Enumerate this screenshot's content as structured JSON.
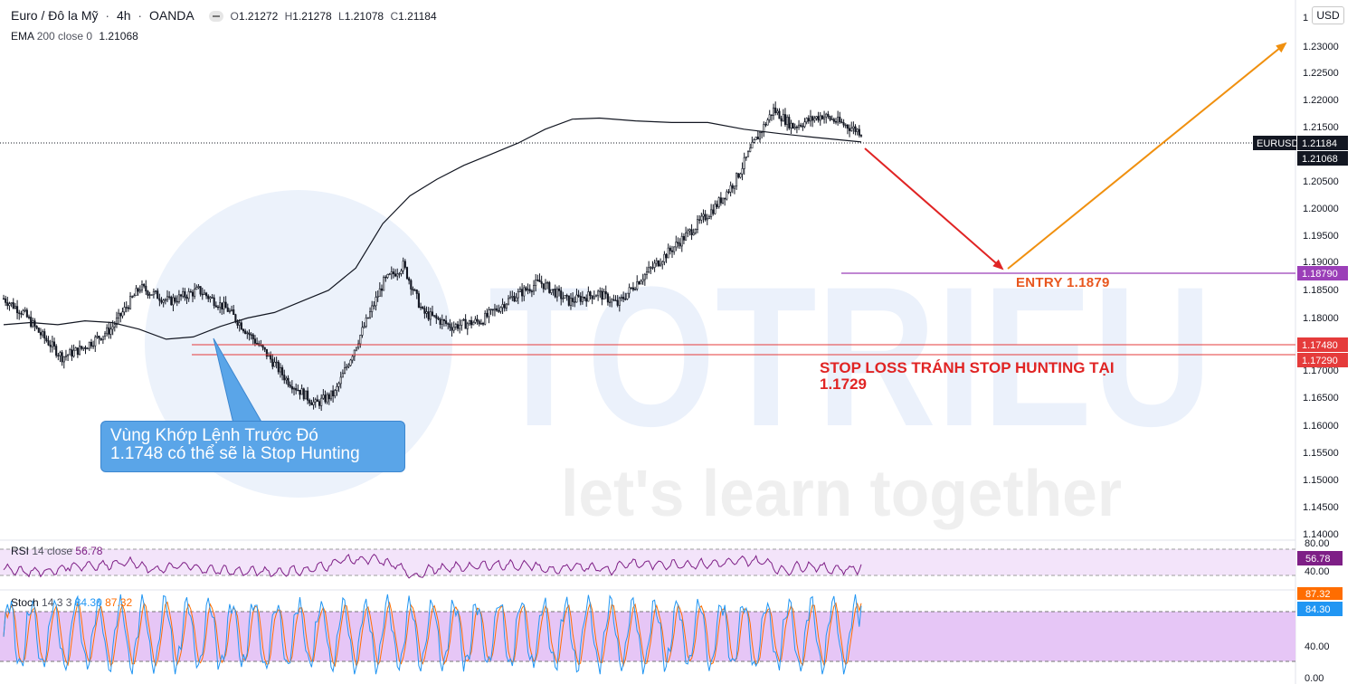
{
  "header": {
    "symbol": "Euro / Đô la Mỹ",
    "interval": "4h",
    "exchange": "OANDA",
    "o_label": "O",
    "o_value": "1.21272",
    "h_label": "H",
    "h_value": "1.21278",
    "l_label": "L",
    "l_value": "1.21078",
    "c_label": "C",
    "c_value": "1.21184"
  },
  "ema": {
    "name": "EMA",
    "params": "200 close 0",
    "value": "1.21068"
  },
  "currency_button": "USD",
  "price_scale": {
    "ticks": [
      "1.23000",
      "1.22500",
      "1.22000",
      "1.21500",
      "1.20500",
      "1.20000",
      "1.19500",
      "1.19000",
      "1.18500",
      "1.18000",
      "1.17000",
      "1.16500",
      "1.16000",
      "1.15500",
      "1.15000",
      "1.14500",
      "1.14000"
    ],
    "top_tick": "1"
  },
  "badges": {
    "symbol": "EURUSD",
    "price": "1.21184",
    "ema": "1.21068",
    "entry": "1.18790",
    "level1": "1.17480",
    "level2": "1.17290"
  },
  "annotations": {
    "callout_line1": "Vùng Khớp Lệnh Trước Đó",
    "callout_line2": "1.1748 có thể sẽ là Stop Hunting",
    "entry_label": "ENTRY 1.1879",
    "stop_line1": "STOP LOSS TRÁNH STOP HUNTING TẠI",
    "stop_line2": "1.1729"
  },
  "watermark": {
    "brand": "TOTRIEU",
    "slogan": "let's learn together"
  },
  "rsi": {
    "name": "RSI",
    "params": "14 close",
    "value": "56.78",
    "scale_top": "80.00",
    "scale_bottom": "40.00"
  },
  "stoch": {
    "name": "Stoch",
    "params": "14 3 3",
    "k_value": "84.30",
    "d_value": "87.32",
    "scale_mid": "40.00",
    "scale_bottom": "0.00"
  },
  "colors": {
    "candle": "#131722",
    "ema": "#131722",
    "down_arrow": "#e02424",
    "up_arrow": "#f0900f",
    "entry_line": "#9b3fb8",
    "stop_line": "#e53b3b",
    "rsi_line": "#7e1f86",
    "stoch_k": "#2196f3",
    "stoch_d": "#ff6d00",
    "stoch_band": "#e6c6f6",
    "badge_price": "#131722",
    "badge_entry": "#9b3fb8",
    "badge_stop": "#e53b3b",
    "badge_rsi": "#7e1f86"
  },
  "chart_data": {
    "type": "candlestick",
    "x_range": [
      0,
      440
    ],
    "ylim": [
      1.14,
      1.233
    ],
    "price_path": [
      [
        0,
        1.1825
      ],
      [
        10,
        1.18
      ],
      [
        18,
        1.1765
      ],
      [
        30,
        1.172
      ],
      [
        40,
        1.1735
      ],
      [
        55,
        1.177
      ],
      [
        70,
        1.1845
      ],
      [
        85,
        1.182
      ],
      [
        100,
        1.184
      ],
      [
        115,
        1.1805
      ],
      [
        125,
        1.1765
      ],
      [
        135,
        1.1725
      ],
      [
        145,
        1.168
      ],
      [
        160,
        1.1635
      ],
      [
        170,
        1.1655
      ],
      [
        180,
        1.1735
      ],
      [
        195,
        1.1855
      ],
      [
        205,
        1.1885
      ],
      [
        215,
        1.18
      ],
      [
        230,
        1.1775
      ],
      [
        245,
        1.1785
      ],
      [
        260,
        1.1825
      ],
      [
        275,
        1.1855
      ],
      [
        290,
        1.182
      ],
      [
        305,
        1.1835
      ],
      [
        315,
        1.1815
      ],
      [
        325,
        1.1855
      ],
      [
        340,
        1.1905
      ],
      [
        355,
        1.1955
      ],
      [
        365,
        1.199
      ],
      [
        375,
        1.2035
      ],
      [
        385,
        1.2105
      ],
      [
        395,
        1.2165
      ],
      [
        405,
        1.2135
      ],
      [
        420,
        1.2155
      ],
      [
        440,
        1.2125
      ]
    ],
    "ema_path": [
      [
        0,
        1.1778
      ],
      [
        30,
        1.1782
      ],
      [
        60,
        1.1778
      ],
      [
        90,
        1.1785
      ],
      [
        120,
        1.1782
      ],
      [
        150,
        1.177
      ],
      [
        180,
        1.1752
      ],
      [
        210,
        1.1756
      ],
      [
        240,
        1.1775
      ],
      [
        270,
        1.179
      ],
      [
        300,
        1.18
      ],
      [
        330,
        1.182
      ],
      [
        360,
        1.184
      ],
      [
        390,
        1.188
      ],
      [
        420,
        1.196
      ],
      [
        450,
        1.201
      ],
      [
        480,
        1.204
      ],
      [
        510,
        1.2065
      ],
      [
        540,
        1.2085
      ],
      [
        570,
        1.2105
      ],
      [
        600,
        1.213
      ],
      [
        630,
        1.2148
      ],
      [
        660,
        1.215
      ],
      [
        700,
        1.2145
      ],
      [
        740,
        1.2142
      ],
      [
        780,
        1.2142
      ],
      [
        820,
        1.213
      ],
      [
        860,
        1.2122
      ],
      [
        900,
        1.2115
      ],
      [
        950,
        1.2107
      ]
    ],
    "entry": 1.1879,
    "stop_level_1": 1.1748,
    "stop_level_2": 1.1729,
    "last_price": 1.21184,
    "ema_value": 1.21068,
    "rsi_last": 56.78,
    "stoch_k_last": 84.3,
    "stoch_d_last": 87.32
  }
}
